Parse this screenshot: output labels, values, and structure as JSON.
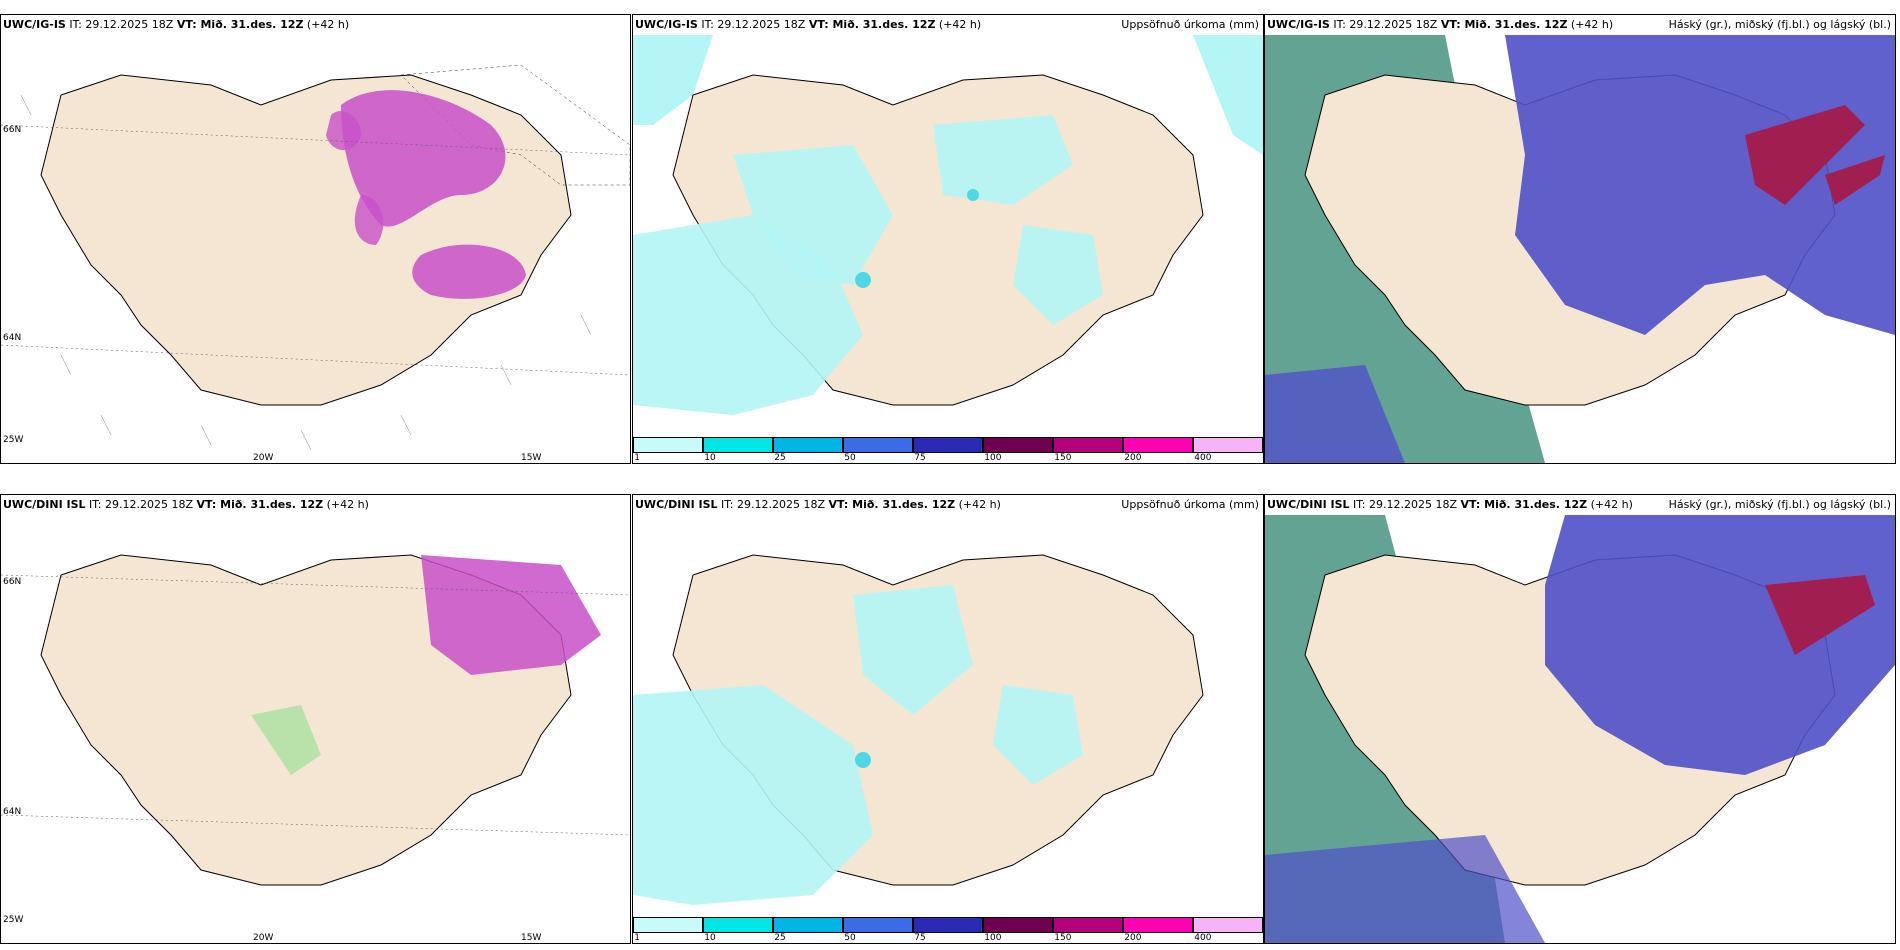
{
  "panels": {
    "top": {
      "left": {
        "model": "UWC/IG-IS",
        "it": "IT: 29.12.2025 18Z",
        "vt": "VT: Mið. 31.des. 12Z",
        "lead": "(+42 h)"
      },
      "mid": {
        "model": "UWC/IG-IS",
        "it": "IT: 29.12.2025 18Z",
        "vt": "VT: Mið. 31.des. 12Z",
        "lead": "(+42 h)",
        "right": "Uppsöfnuð úrkoma (mm)"
      },
      "right": {
        "model": "UWC/IG-IS",
        "it": "IT: 29.12.2025 18Z",
        "vt": "VT: Mið. 31.des. 12Z",
        "lead": "(+42 h)",
        "right": "Háský (gr.), miðský (fj.bl.) og lágský (bl.)"
      }
    },
    "bottom": {
      "left": {
        "model": "UWC/DINI ISL",
        "it": "IT: 29.12.2025 18Z",
        "vt": "VT: Mið. 31.des. 12Z",
        "lead": "(+42 h)"
      },
      "mid": {
        "model": "UWC/DINI ISL",
        "it": "IT: 29.12.2025 18Z",
        "vt": "VT: Mið. 31.des. 12Z",
        "lead": "(+42 h)",
        "right": "Uppsöfnuð úrkoma (mm)"
      },
      "right": {
        "model": "UWC/DINI ISL",
        "it": "IT: 29.12.2025 18Z",
        "vt": "VT: Mið. 31.des. 12Z",
        "lead": "(+42 h)",
        "right": "Háský (gr.), miðský (fj.bl.) og lágský (bl.)"
      }
    }
  },
  "axis_labels": {
    "lat66": "66N",
    "lat64": "64N",
    "lon20": "20W",
    "lon15": "15W",
    "lon25": "25W"
  },
  "colorbar": {
    "ticks": [
      "1",
      "10",
      "25",
      "50",
      "75",
      "100",
      "150",
      "200",
      "400"
    ],
    "colors": [
      "#c8fafa",
      "#00e5e5",
      "#00b4e6",
      "#3c6be6",
      "#2a2ab4",
      "#6e0050",
      "#b4007c",
      "#ff00b4",
      "#f5b4f5"
    ]
  },
  "colors": {
    "land": "#f5e6d3",
    "sea": "#ffffff",
    "precip_light": "#b4f5f5",
    "precip_mid": "#50d7e6",
    "snow": "#c850c8",
    "high_cloud": "#3c8c78",
    "mid_cloud": "#5050c8",
    "low_cloud": "#a01e50"
  }
}
